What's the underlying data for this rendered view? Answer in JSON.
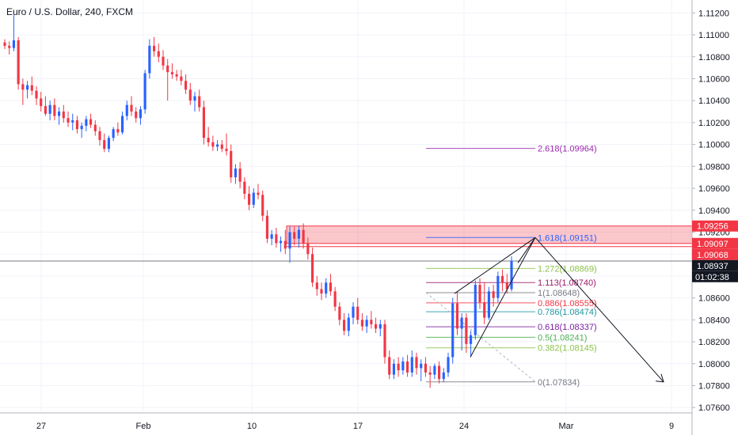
{
  "chart_data": {
    "type": "candlestick",
    "title": "Euro / U.S. Dollar, 240, FXCM",
    "symbol": "EURUSD",
    "interval": "240",
    "source": "FXCM",
    "x_ticks": [
      "27",
      "Feb",
      "10",
      "17",
      "24",
      "Mar",
      "9"
    ],
    "y_ticks": [
      "1.11200",
      "1.11000",
      "1.10800",
      "1.10600",
      "1.10400",
      "1.10200",
      "1.10000",
      "1.09800",
      "1.09600",
      "1.09400",
      "1.09200",
      "1.09000",
      "1.08800",
      "1.08600",
      "1.08400",
      "1.08200",
      "1.08000",
      "1.07800",
      "1.07600"
    ],
    "ylim": [
      1.0758,
      1.1126
    ],
    "price_labels": [
      {
        "text": "1.09256",
        "value": 1.09256,
        "color": "#f23645",
        "text_color": "#ffffff"
      },
      {
        "text": "1.09097",
        "value": 1.09097,
        "color": "#f23645",
        "text_color": "#ffffff"
      },
      {
        "text": "1.09068",
        "value": 1.09068,
        "color": "#f23645",
        "text_color": "#ffffff"
      },
      {
        "text": "1.08937",
        "value": 1.08937,
        "color": "#131722",
        "text_color": "#ffffff"
      }
    ],
    "countdown": "01:02:38",
    "fib_levels": [
      {
        "label": "2.618(1.09964)",
        "value": 1.09964,
        "color": "#9c27b0"
      },
      {
        "label": "1.618(1.09151)",
        "value": 1.09151,
        "color": "#2962ff"
      },
      {
        "label": "1.272(1.08869)",
        "value": 1.08869,
        "color": "#8bc34a"
      },
      {
        "label": "1.113(1.08740)",
        "value": 1.0874,
        "color": "#9c1a6a"
      },
      {
        "label": "1(1.08648)",
        "value": 1.08648,
        "color": "#787b86"
      },
      {
        "label": "0.886(1.08555)",
        "value": 1.08555,
        "color": "#f23645"
      },
      {
        "label": "0.786(1.08474)",
        "value": 1.08474,
        "color": "#2196a3"
      },
      {
        "label": "0.618(1.08337)",
        "value": 1.08337,
        "color": "#7b1fa2"
      },
      {
        "label": "0.5(1.08241)",
        "value": 1.08241,
        "color": "#4caf50"
      },
      {
        "label": "0.382(1.08145)",
        "value": 1.08145,
        "color": "#8bc34a"
      },
      {
        "label": "0(1.07834)",
        "value": 1.07834,
        "color": "#787b86"
      }
    ],
    "zone": {
      "top": 1.09256,
      "bottom": 1.09097
    },
    "candles": [
      {
        "o": 1.1093,
        "h": 1.1096,
        "l": 1.1087,
        "c": 1.109
      },
      {
        "o": 1.109,
        "h": 1.1094,
        "l": 1.1082,
        "c": 1.1088
      },
      {
        "o": 1.1088,
        "h": 1.1118,
        "l": 1.1085,
        "c": 1.1095
      },
      {
        "o": 1.1095,
        "h": 1.1098,
        "l": 1.105,
        "c": 1.1055
      },
      {
        "o": 1.1055,
        "h": 1.106,
        "l": 1.1036,
        "c": 1.105
      },
      {
        "o": 1.105,
        "h": 1.1058,
        "l": 1.1042,
        "c": 1.1054
      },
      {
        "o": 1.1054,
        "h": 1.1062,
        "l": 1.1045,
        "c": 1.1049
      },
      {
        "o": 1.1049,
        "h": 1.1053,
        "l": 1.1036,
        "c": 1.1042
      },
      {
        "o": 1.1042,
        "h": 1.1048,
        "l": 1.103,
        "c": 1.1035
      },
      {
        "o": 1.1035,
        "h": 1.1044,
        "l": 1.1026,
        "c": 1.1028
      },
      {
        "o": 1.1028,
        "h": 1.104,
        "l": 1.1022,
        "c": 1.1036
      },
      {
        "o": 1.1036,
        "h": 1.1042,
        "l": 1.1022,
        "c": 1.1026
      },
      {
        "o": 1.1026,
        "h": 1.1034,
        "l": 1.1018,
        "c": 1.103
      },
      {
        "o": 1.103,
        "h": 1.1036,
        "l": 1.102,
        "c": 1.1024
      },
      {
        "o": 1.1024,
        "h": 1.103,
        "l": 1.1016,
        "c": 1.102
      },
      {
        "o": 1.102,
        "h": 1.1028,
        "l": 1.1013,
        "c": 1.1022
      },
      {
        "o": 1.1022,
        "h": 1.1026,
        "l": 1.101,
        "c": 1.1014
      },
      {
        "o": 1.1014,
        "h": 1.102,
        "l": 1.1006,
        "c": 1.1017
      },
      {
        "o": 1.1017,
        "h": 1.1026,
        "l": 1.1012,
        "c": 1.1023
      },
      {
        "o": 1.1023,
        "h": 1.1028,
        "l": 1.1015,
        "c": 1.1018
      },
      {
        "o": 1.1018,
        "h": 1.1022,
        "l": 1.1008,
        "c": 1.1012
      },
      {
        "o": 1.1012,
        "h": 1.1016,
        "l": 1.0999,
        "c": 1.1004
      },
      {
        "o": 1.1004,
        "h": 1.101,
        "l": 1.0993,
        "c": 1.0996
      },
      {
        "o": 1.0996,
        "h": 1.1008,
        "l": 1.0993,
        "c": 1.1006
      },
      {
        "o": 1.1006,
        "h": 1.1016,
        "l": 1.1003,
        "c": 1.1014
      },
      {
        "o": 1.1014,
        "h": 1.102,
        "l": 1.1008,
        "c": 1.1011
      },
      {
        "o": 1.1011,
        "h": 1.103,
        "l": 1.1009,
        "c": 1.1026
      },
      {
        "o": 1.1026,
        "h": 1.104,
        "l": 1.1022,
        "c": 1.1036
      },
      {
        "o": 1.1036,
        "h": 1.1044,
        "l": 1.1026,
        "c": 1.103
      },
      {
        "o": 1.103,
        "h": 1.1034,
        "l": 1.102,
        "c": 1.1024
      },
      {
        "o": 1.1024,
        "h": 1.1035,
        "l": 1.1018,
        "c": 1.1032
      },
      {
        "o": 1.1032,
        "h": 1.1068,
        "l": 1.1028,
        "c": 1.1065
      },
      {
        "o": 1.1065,
        "h": 1.1096,
        "l": 1.106,
        "c": 1.109
      },
      {
        "o": 1.109,
        "h": 1.1098,
        "l": 1.108,
        "c": 1.1085
      },
      {
        "o": 1.1085,
        "h": 1.1092,
        "l": 1.1075,
        "c": 1.108
      },
      {
        "o": 1.108,
        "h": 1.1086,
        "l": 1.1068,
        "c": 1.1072
      },
      {
        "o": 1.1072,
        "h": 1.1078,
        "l": 1.104,
        "c": 1.1066
      },
      {
        "o": 1.1066,
        "h": 1.1074,
        "l": 1.106,
        "c": 1.1064
      },
      {
        "o": 1.1064,
        "h": 1.1068,
        "l": 1.1058,
        "c": 1.1062
      },
      {
        "o": 1.1062,
        "h": 1.1068,
        "l": 1.1054,
        "c": 1.1058
      },
      {
        "o": 1.1058,
        "h": 1.1064,
        "l": 1.1046,
        "c": 1.105
      },
      {
        "o": 1.105,
        "h": 1.1056,
        "l": 1.1036,
        "c": 1.104
      },
      {
        "o": 1.104,
        "h": 1.1048,
        "l": 1.103,
        "c": 1.1044
      },
      {
        "o": 1.1044,
        "h": 1.105,
        "l": 1.103,
        "c": 1.1034
      },
      {
        "o": 1.1034,
        "h": 1.104,
        "l": 1.1,
        "c": 1.1006
      },
      {
        "o": 1.1006,
        "h": 1.1016,
        "l": 1.0998,
        "c": 1.1002
      },
      {
        "o": 1.1002,
        "h": 1.1008,
        "l": 1.0994,
        "c": 1.0998
      },
      {
        "o": 1.0998,
        "h": 1.1004,
        "l": 1.0994,
        "c": 1.1
      },
      {
        "o": 1.1,
        "h": 1.1004,
        "l": 1.0993,
        "c": 1.0996
      },
      {
        "o": 1.0996,
        "h": 1.101,
        "l": 1.099,
        "c": 1.0994
      },
      {
        "o": 1.0994,
        "h": 1.1,
        "l": 1.0965,
        "c": 1.097
      },
      {
        "o": 1.097,
        "h": 1.0982,
        "l": 1.0964,
        "c": 1.0978
      },
      {
        "o": 1.0978,
        "h": 1.0984,
        "l": 1.096,
        "c": 1.0966
      },
      {
        "o": 1.0966,
        "h": 1.097,
        "l": 1.095,
        "c": 1.0955
      },
      {
        "o": 1.0955,
        "h": 1.0962,
        "l": 1.094,
        "c": 1.0945
      },
      {
        "o": 1.0945,
        "h": 1.096,
        "l": 1.0942,
        "c": 1.0956
      },
      {
        "o": 1.0956,
        "h": 1.0964,
        "l": 1.095,
        "c": 1.0954
      },
      {
        "o": 1.0954,
        "h": 1.0958,
        "l": 1.093,
        "c": 1.0935
      },
      {
        "o": 1.0935,
        "h": 1.094,
        "l": 1.091,
        "c": 1.0914
      },
      {
        "o": 1.0914,
        "h": 1.0922,
        "l": 1.0908,
        "c": 1.0918
      },
      {
        "o": 1.0918,
        "h": 1.0924,
        "l": 1.0906,
        "c": 1.091
      },
      {
        "o": 1.091,
        "h": 1.0916,
        "l": 1.0902,
        "c": 1.0912
      },
      {
        "o": 1.0912,
        "h": 1.0922,
        "l": 1.09,
        "c": 1.0905
      },
      {
        "o": 1.0905,
        "h": 1.0925,
        "l": 1.0892,
        "c": 1.092
      },
      {
        "o": 1.092,
        "h": 1.0925,
        "l": 1.0908,
        "c": 1.0914
      },
      {
        "o": 1.0914,
        "h": 1.0926,
        "l": 1.0906,
        "c": 1.0922
      },
      {
        "o": 1.0922,
        "h": 1.0928,
        "l": 1.0905,
        "c": 1.091
      },
      {
        "o": 1.091,
        "h": 1.0915,
        "l": 1.0895,
        "c": 1.09
      },
      {
        "o": 1.09,
        "h": 1.0906,
        "l": 1.087,
        "c": 1.0874
      },
      {
        "o": 1.0874,
        "h": 1.088,
        "l": 1.0862,
        "c": 1.0868
      },
      {
        "o": 1.0868,
        "h": 1.0874,
        "l": 1.0858,
        "c": 1.0864
      },
      {
        "o": 1.0864,
        "h": 1.0878,
        "l": 1.086,
        "c": 1.0874
      },
      {
        "o": 1.0874,
        "h": 1.0882,
        "l": 1.0862,
        "c": 1.0866
      },
      {
        "o": 1.0866,
        "h": 1.087,
        "l": 1.0848,
        "c": 1.0852
      },
      {
        "o": 1.0852,
        "h": 1.0856,
        "l": 1.0835,
        "c": 1.084
      },
      {
        "o": 1.084,
        "h": 1.0846,
        "l": 1.0826,
        "c": 1.083
      },
      {
        "o": 1.083,
        "h": 1.0846,
        "l": 1.0825,
        "c": 1.0842
      },
      {
        "o": 1.0842,
        "h": 1.0856,
        "l": 1.0836,
        "c": 1.0852
      },
      {
        "o": 1.0852,
        "h": 1.086,
        "l": 1.0836,
        "c": 1.084
      },
      {
        "o": 1.084,
        "h": 1.0846,
        "l": 1.083,
        "c": 1.0834
      },
      {
        "o": 1.0834,
        "h": 1.0844,
        "l": 1.0828,
        "c": 1.084
      },
      {
        "o": 1.084,
        "h": 1.0848,
        "l": 1.0832,
        "c": 1.0836
      },
      {
        "o": 1.0836,
        "h": 1.0842,
        "l": 1.0828,
        "c": 1.0832
      },
      {
        "o": 1.0832,
        "h": 1.084,
        "l": 1.0825,
        "c": 1.0836
      },
      {
        "o": 1.0836,
        "h": 1.084,
        "l": 1.08,
        "c": 1.0806
      },
      {
        "o": 1.0806,
        "h": 1.0812,
        "l": 1.0786,
        "c": 1.079
      },
      {
        "o": 1.079,
        "h": 1.0804,
        "l": 1.0786,
        "c": 1.08
      },
      {
        "o": 1.08,
        "h": 1.0806,
        "l": 1.0788,
        "c": 1.0794
      },
      {
        "o": 1.0794,
        "h": 1.0806,
        "l": 1.079,
        "c": 1.0802
      },
      {
        "o": 1.0802,
        "h": 1.0808,
        "l": 1.0788,
        "c": 1.0792
      },
      {
        "o": 1.0792,
        "h": 1.0812,
        "l": 1.0788,
        "c": 1.0806
      },
      {
        "o": 1.0806,
        "h": 1.081,
        "l": 1.079,
        "c": 1.0796
      },
      {
        "o": 1.0796,
        "h": 1.0804,
        "l": 1.0784,
        "c": 1.08
      },
      {
        "o": 1.08,
        "h": 1.0806,
        "l": 1.0788,
        "c": 1.0792
      },
      {
        "o": 1.0792,
        "h": 1.0798,
        "l": 1.0778,
        "c": 1.079
      },
      {
        "o": 1.079,
        "h": 1.08,
        "l": 1.0786,
        "c": 1.0798
      },
      {
        "o": 1.0798,
        "h": 1.0802,
        "l": 1.0782,
        "c": 1.0786
      },
      {
        "o": 1.0786,
        "h": 1.0796,
        "l": 1.0783,
        "c": 1.0792
      },
      {
        "o": 1.0792,
        "h": 1.081,
        "l": 1.0788,
        "c": 1.0806
      },
      {
        "o": 1.0806,
        "h": 1.086,
        "l": 1.08,
        "c": 1.0855
      },
      {
        "o": 1.0855,
        "h": 1.0866,
        "l": 1.0826,
        "c": 1.0832
      },
      {
        "o": 1.0832,
        "h": 1.0846,
        "l": 1.0812,
        "c": 1.0842
      },
      {
        "o": 1.0842,
        "h": 1.0846,
        "l": 1.081,
        "c": 1.0818
      },
      {
        "o": 1.0818,
        "h": 1.083,
        "l": 1.0806,
        "c": 1.0826
      },
      {
        "o": 1.0826,
        "h": 1.0876,
        "l": 1.0822,
        "c": 1.0872
      },
      {
        "o": 1.0872,
        "h": 1.0878,
        "l": 1.085,
        "c": 1.0856
      },
      {
        "o": 1.0856,
        "h": 1.0874,
        "l": 1.0836,
        "c": 1.0842
      },
      {
        "o": 1.0842,
        "h": 1.087,
        "l": 1.084,
        "c": 1.0866
      },
      {
        "o": 1.0866,
        "h": 1.0872,
        "l": 1.0852,
        "c": 1.086
      },
      {
        "o": 1.086,
        "h": 1.0884,
        "l": 1.0856,
        "c": 1.088
      },
      {
        "o": 1.088,
        "h": 1.0886,
        "l": 1.0866,
        "c": 1.0874
      },
      {
        "o": 1.0874,
        "h": 1.0882,
        "l": 1.0864,
        "c": 1.0868
      },
      {
        "o": 1.0868,
        "h": 1.0898,
        "l": 1.0866,
        "c": 1.0894
      }
    ]
  }
}
